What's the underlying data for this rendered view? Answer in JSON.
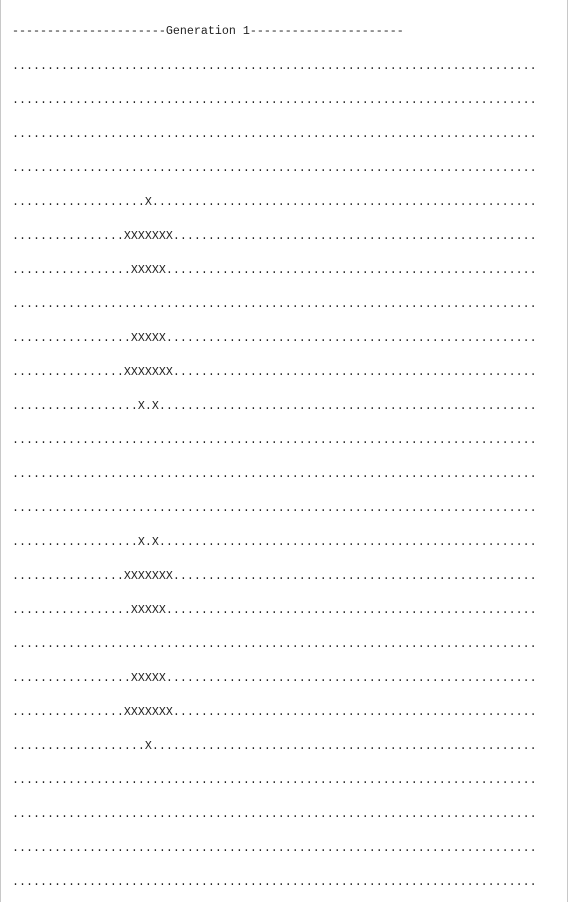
{
  "header": "----------------------Generation 1----------------------",
  "rows": [
    "...........................................................................",
    "...........................................................................",
    "...........................................................................",
    "...........................................................................",
    "...................X.......................................................",
    "................XXXXXXX....................................................",
    ".................XXXXX.....................................................",
    "...........................................................................",
    ".................XXXXX.....................................................",
    "................XXXXXXX....................................................",
    "..................X.X......................................................",
    "...........................................................................",
    "...........................................................................",
    "...........................................................................",
    "..................X.X......................................................",
    "................XXXXXXX....................................................",
    ".................XXXXX.....................................................",
    "...........................................................................",
    ".................XXXXX.....................................................",
    "................XXXXXXX....................................................",
    "...................X.......................................................",
    "...........................................................................",
    "...........................................................................",
    "...........................................................................",
    "..........................................................................."
  ]
}
